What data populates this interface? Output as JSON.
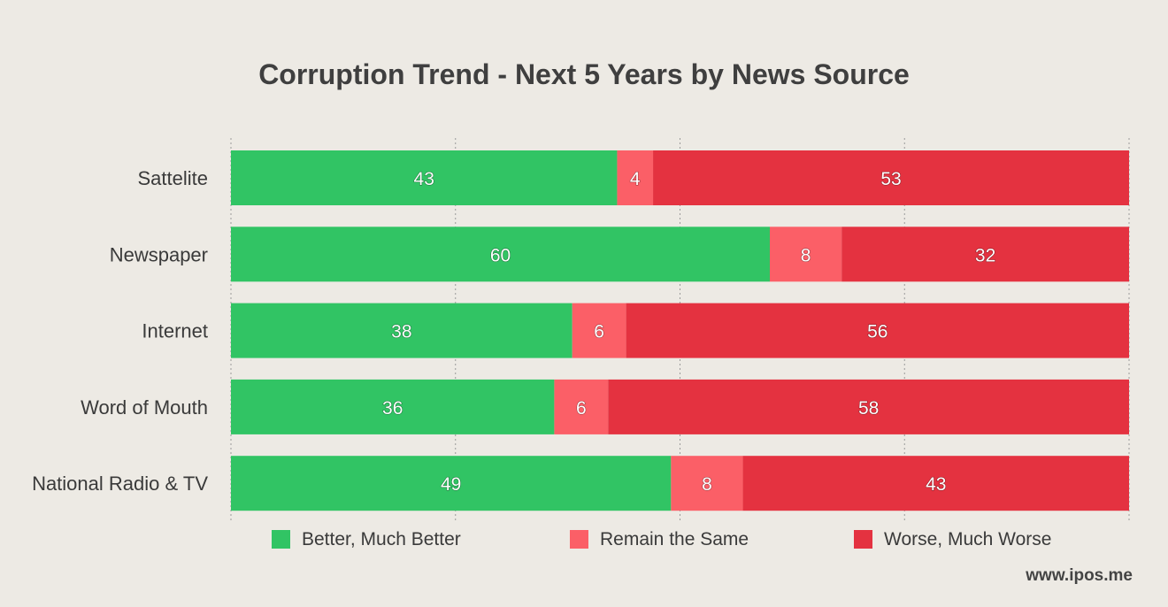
{
  "chart_data": {
    "type": "bar",
    "orientation": "horizontal",
    "stacked": true,
    "title": "Corruption Trend - Next 5 Years by News Source",
    "categories": [
      "Sattelite",
      "Newspaper",
      "Internet",
      "Word of Mouth",
      "National Radio & TV"
    ],
    "series": [
      {
        "name": "Better, Much Better",
        "color": "#31c464",
        "values": [
          43,
          60,
          38,
          36,
          49
        ]
      },
      {
        "name": "Remain the Same",
        "color": "#fb5f67",
        "values": [
          4,
          8,
          6,
          6,
          8
        ]
      },
      {
        "name": "Worse, Much Worse",
        "color": "#e43240",
        "values": [
          53,
          32,
          56,
          58,
          43
        ]
      }
    ],
    "xlim": [
      0,
      100
    ],
    "xticks": [
      0,
      25,
      50,
      75,
      100
    ],
    "grid": true,
    "legend_position": "bottom"
  },
  "watermark": "www.ipos.me"
}
